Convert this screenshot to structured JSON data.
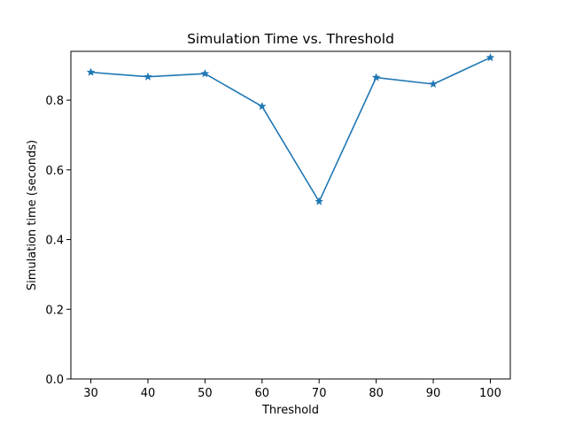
{
  "chart_data": {
    "type": "line",
    "title": "Simulation Time vs. Threshold",
    "xlabel": "Threshold",
    "ylabel": "Simulation time (seconds)",
    "x": [
      30,
      40,
      50,
      60,
      70,
      80,
      90,
      100
    ],
    "series": [
      {
        "values": [
          0.88,
          0.867,
          0.876,
          0.782,
          0.509,
          0.865,
          0.846,
          0.922
        ],
        "color": "#1f77b4",
        "marker": "star"
      }
    ],
    "xlim": [
      26.5,
      103.5
    ],
    "ylim": [
      0,
      0.94
    ],
    "xticks": [
      30,
      40,
      50,
      60,
      70,
      80,
      90,
      100
    ],
    "yticks": [
      0.0,
      0.2,
      0.4,
      0.6,
      0.8
    ],
    "ytick_labels": [
      "0.0",
      "0.2",
      "0.4",
      "0.6",
      "0.8"
    ],
    "grid": false,
    "legend": "none"
  }
}
